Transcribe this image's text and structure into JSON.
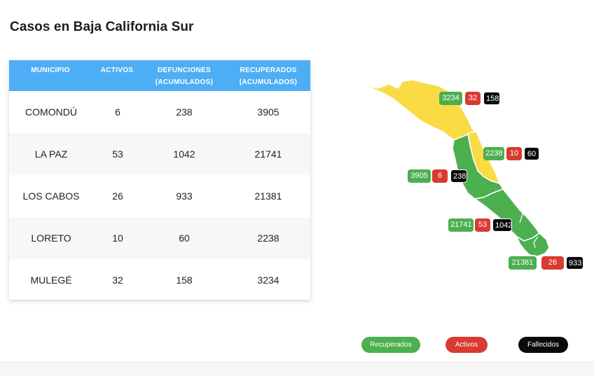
{
  "title": "Casos en Baja California Sur",
  "table": {
    "headers": {
      "municipio": "MUNICIPIO",
      "activos": "ACTIVOS",
      "defunciones_1": "DEFUNCIONES",
      "defunciones_2": "(ACUMULADOS)",
      "recuperados_1": "RECUPERADOS",
      "recuperados_2": "(ACUMULADOS)"
    },
    "rows": [
      {
        "municipio": "COMONDÚ",
        "activos": "6",
        "defunciones": "238",
        "recuperados": "3905"
      },
      {
        "municipio": "LA PAZ",
        "activos": "53",
        "defunciones": "1042",
        "recuperados": "21741"
      },
      {
        "municipio": "LOS CABOS",
        "activos": "26",
        "defunciones": "933",
        "recuperados": "21381"
      },
      {
        "municipio": "LORETO",
        "activos": "10",
        "defunciones": "60",
        "recuperados": "2238"
      },
      {
        "municipio": "MULEGÉ",
        "activos": "32",
        "defunciones": "158",
        "recuperados": "3234"
      }
    ]
  },
  "map": {
    "colors": {
      "yellow": "#f9dc44",
      "green": "#4caf50"
    },
    "labels": {
      "mulege": {
        "recuperados": "3234",
        "activos": "32",
        "fallecidos": "158"
      },
      "loreto": {
        "recuperados": "2238",
        "activos": "10",
        "fallecidos": "60"
      },
      "comondu": {
        "recuperados": "3905",
        "activos": "6",
        "fallecidos": "238"
      },
      "la_paz": {
        "recuperados": "21741",
        "activos": "53",
        "fallecidos": "1042"
      },
      "los_cabos": {
        "recuperados": "21381",
        "activos": "26",
        "fallecidos": "933"
      }
    }
  },
  "legend": {
    "recuperados": "Recuperados",
    "activos": "Activos",
    "fallecidos": "Fallecidos",
    "colors": {
      "recuperados": "#4caf50",
      "activos": "#d93a32",
      "fallecidos": "#0a0a0a"
    }
  }
}
